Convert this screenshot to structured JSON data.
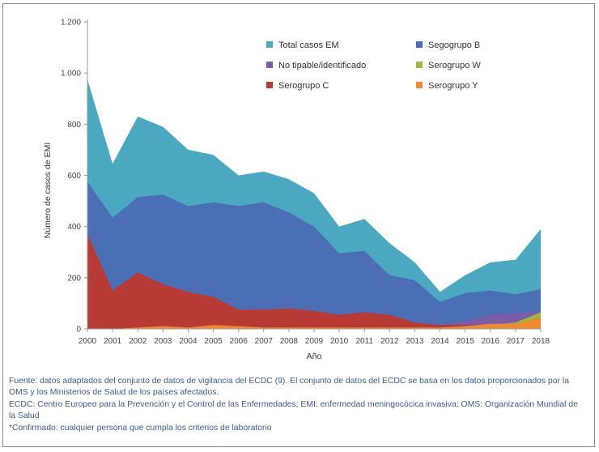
{
  "chart_data": {
    "type": "area",
    "xlabel": "Año",
    "ylabel": "Número de casos de EMI",
    "x": [
      2000,
      2001,
      2002,
      2003,
      2004,
      2005,
      2006,
      2007,
      2008,
      2009,
      2010,
      2011,
      2012,
      2013,
      2014,
      2015,
      2016,
      2017,
      2018
    ],
    "x_tick_labels": [
      "2000",
      "2001",
      "2002",
      "2003",
      "2004",
      "2005",
      "2006",
      "2007",
      "2008",
      "2009",
      "2010",
      "2011",
      "2012",
      "2013",
      "2014",
      "2015",
      "2016",
      "2017",
      "2018"
    ],
    "ylim": [
      0,
      1200
    ],
    "y_ticks": [
      0,
      200,
      400,
      600,
      800,
      1000,
      1200
    ],
    "y_tick_labels": [
      "0",
      "200",
      "400",
      "600",
      "800",
      "1.000",
      "1.200"
    ],
    "grid": false,
    "legend_position": "top-right",
    "series": [
      {
        "name": "Total casos EM",
        "color": "#4aa8c0",
        "values": [
          975,
          645,
          830,
          790,
          700,
          680,
          600,
          615,
          585,
          530,
          400,
          430,
          335,
          260,
          145,
          210,
          260,
          270,
          390
        ]
      },
      {
        "name": "Segogrupo B",
        "color": "#4a6fb5",
        "values": [
          575,
          435,
          515,
          525,
          480,
          495,
          480,
          495,
          455,
          400,
          295,
          305,
          210,
          190,
          105,
          140,
          150,
          135,
          155
        ]
      },
      {
        "name": "No tipable/identificado",
        "color": "#7b5ca8",
        "values": [
          0,
          0,
          0,
          0,
          0,
          0,
          0,
          0,
          0,
          0,
          0,
          0,
          0,
          10,
          15,
          30,
          55,
          60,
          70
        ]
      },
      {
        "name": "Serogrupo W",
        "color": "#9bbb3c",
        "values": [
          0,
          0,
          0,
          0,
          0,
          0,
          0,
          0,
          0,
          0,
          0,
          0,
          0,
          0,
          0,
          5,
          15,
          25,
          65
        ]
      },
      {
        "name": "Serogrupo C",
        "color": "#b83a35",
        "values": [
          370,
          150,
          220,
          175,
          145,
          125,
          75,
          75,
          80,
          70,
          55,
          65,
          55,
          25,
          15,
          15,
          15,
          20,
          35
        ]
      },
      {
        "name": "Serogrupo Y",
        "color": "#ef8a2e",
        "values": [
          0,
          0,
          5,
          10,
          5,
          15,
          10,
          5,
          5,
          5,
          5,
          5,
          5,
          5,
          5,
          10,
          20,
          20,
          45
        ]
      }
    ],
    "legend_order": [
      "Total casos EM",
      "Segogrupo B",
      "No tipable/identificado",
      "Serogrupo W",
      "Serogrupo C",
      "Serogrupo Y"
    ]
  },
  "source_notes": [
    "Fuente: datos adaptados del conjunto de datos de vigilancia del ECDC (9). El conjunto de datos del ECDC se basa en los datos proporcionados por la OMS y los Ministerios de Salud de los países afectados.",
    "ECDC: Centro Europeo para la Prevención y el Control de las Enfermedades; EMI: enfermedad meningocócica invasiva; OMS: Organización Mundial de la Salud",
    "*Confirmado: cualquier persona que cumpla los criterios de laboratorio"
  ]
}
